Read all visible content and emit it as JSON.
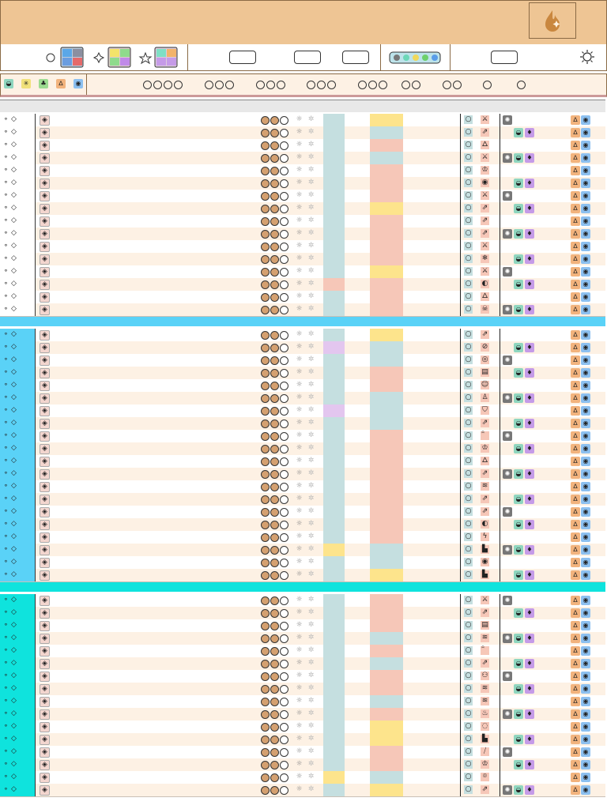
{
  "colors": {
    "header": "#eec594",
    "row_odd": "#ffffff",
    "row_even": "#fdf1e4",
    "section_blue": "#5ad2f7",
    "section_cyan": "#0fe3dd",
    "teal_col": "#c5dfe0",
    "salmon_col": "#f6c7b8",
    "yellow_col": "#fde48c",
    "lavender_col": "#e3c6ef"
  },
  "icons": {
    "logo": "pyro-element-icon",
    "filter_brain": "brain-icon",
    "filter_star_outline": "star-outline-icon",
    "filter_sparkle": "sparkle-icon",
    "settings": "sun-gear-icon"
  },
  "sections": [
    {
      "color": "#5ad2f7",
      "top": 400
    },
    {
      "color": "#0fe3dd",
      "top": 736
    }
  ],
  "rows": [
    {
      "top": 144,
      "bg": "#ffffff",
      "bar": "#ffffff",
      "t": "#c5dfe0",
      "y": "#fde48c",
      "right": "sword"
    },
    {
      "top": 160,
      "bg": "#fdf1e4",
      "bar": "#ffffff",
      "t": "#c5dfe0",
      "y": "#c5dfe0",
      "right": "arrow"
    },
    {
      "top": 176,
      "bg": "#ffffff",
      "bar": "#ffffff",
      "t": "#c5dfe0",
      "y": "#f6c7b8",
      "right": "flame"
    },
    {
      "top": 192,
      "bg": "#fdf1e4",
      "bar": "#ffffff",
      "t": "#c5dfe0",
      "y": "#c5dfe0",
      "right": "sword"
    },
    {
      "top": 208,
      "bg": "#ffffff",
      "bar": "#ffffff",
      "t": "#c5dfe0",
      "y": "#f6c7b8",
      "right": "crown"
    },
    {
      "top": 224,
      "bg": "#fdf1e4",
      "bar": "#ffffff",
      "t": "#c5dfe0",
      "y": "#f6c7b8",
      "right": "eye"
    },
    {
      "top": 240,
      "bg": "#ffffff",
      "bar": "#ffffff",
      "t": "#c5dfe0",
      "y": "#f6c7b8",
      "right": "sword"
    },
    {
      "top": 256,
      "bg": "#fdf1e4",
      "bar": "#ffffff",
      "t": "#c5dfe0",
      "y": "#fde48c",
      "right": "arrow"
    },
    {
      "top": 272,
      "bg": "#ffffff",
      "bar": "#ffffff",
      "t": "#c5dfe0",
      "y": "#f6c7b8",
      "right": "arrow"
    },
    {
      "top": 288,
      "bg": "#fdf1e4",
      "bar": "#ffffff",
      "t": "#c5dfe0",
      "y": "#f6c7b8",
      "right": "arrow"
    },
    {
      "top": 304,
      "bg": "#ffffff",
      "bar": "#ffffff",
      "t": "#c5dfe0",
      "y": "#f6c7b8",
      "right": "sword"
    },
    {
      "top": 320,
      "bg": "#fdf1e4",
      "bar": "#ffffff",
      "t": "#c5dfe0",
      "y": "#f6c7b8",
      "right": "snow"
    },
    {
      "top": 336,
      "bg": "#ffffff",
      "bar": "#ffffff",
      "t": "#c5dfe0",
      "y": "#fde48c",
      "right": "sword"
    },
    {
      "top": 352,
      "bg": "#fdf1e4",
      "bar": "#ffffff",
      "t": "#f6c7b8",
      "y": "#f6c7b8",
      "right": "drop"
    },
    {
      "top": 368,
      "bg": "#ffffff",
      "bar": "#ffffff",
      "t": "#c5dfe0",
      "y": "#f6c7b8",
      "right": "flame"
    },
    {
      "top": 384,
      "bg": "#fdf1e4",
      "bar": "#ffffff",
      "t": "#c5dfe0",
      "y": "#f6c7b8",
      "right": "skull"
    },
    {
      "top": 416,
      "bg": "#ffffff",
      "bar": "#5ad2f7",
      "t": "#c5dfe0",
      "y": "#fde48c",
      "right": "arrow"
    },
    {
      "top": 432,
      "bg": "#fdf1e4",
      "bar": "#5ad2f7",
      "t": "#e3c6ef",
      "y": "#c5dfe0",
      "right": "compass"
    },
    {
      "top": 448,
      "bg": "#ffffff",
      "bar": "#5ad2f7",
      "t": "#c5dfe0",
      "y": "#c5dfe0",
      "right": "target"
    },
    {
      "top": 464,
      "bg": "#fdf1e4",
      "bar": "#5ad2f7",
      "t": "#c5dfe0",
      "y": "#f6c7b8",
      "right": "book"
    },
    {
      "top": 480,
      "bg": "#ffffff",
      "bar": "#5ad2f7",
      "t": "#c5dfe0",
      "y": "#f6c7b8",
      "right": "smile"
    },
    {
      "top": 496,
      "bg": "#fdf1e4",
      "bar": "#5ad2f7",
      "t": "#c5dfe0",
      "y": "#c5dfe0",
      "right": "person"
    },
    {
      "top": 512,
      "bg": "#ffffff",
      "bar": "#5ad2f7",
      "t": "#e3c6ef",
      "y": "#c5dfe0",
      "right": "shield"
    },
    {
      "top": 528,
      "bg": "#fdf1e4",
      "bar": "#5ad2f7",
      "t": "#c5dfe0",
      "y": "#c5dfe0",
      "right": "arrow"
    },
    {
      "top": 544,
      "bg": "#ffffff",
      "bar": "#5ad2f7",
      "t": "#c5dfe0",
      "y": "#f6c7b8",
      "right": "swirl"
    },
    {
      "top": 560,
      "bg": "#fdf1e4",
      "bar": "#5ad2f7",
      "t": "#c5dfe0",
      "y": "#f6c7b8",
      "right": "crown"
    },
    {
      "top": 576,
      "bg": "#ffffff",
      "bar": "#5ad2f7",
      "t": "#c5dfe0",
      "y": "#f6c7b8",
      "right": "flame"
    },
    {
      "top": 592,
      "bg": "#fdf1e4",
      "bar": "#5ad2f7",
      "t": "#c5dfe0",
      "y": "#f6c7b8",
      "right": "arrow"
    },
    {
      "top": 608,
      "bg": "#ffffff",
      "bar": "#5ad2f7",
      "t": "#c5dfe0",
      "y": "#f6c7b8",
      "right": "wave"
    },
    {
      "top": 624,
      "bg": "#fdf1e4",
      "bar": "#5ad2f7",
      "t": "#c5dfe0",
      "y": "#f6c7b8",
      "right": "arrow"
    },
    {
      "top": 640,
      "bg": "#ffffff",
      "bar": "#5ad2f7",
      "t": "#c5dfe0",
      "y": "#f6c7b8",
      "right": "arrow"
    },
    {
      "top": 656,
      "bg": "#fdf1e4",
      "bar": "#5ad2f7",
      "t": "#c5dfe0",
      "y": "#f6c7b8",
      "right": "drop"
    },
    {
      "top": 672,
      "bg": "#ffffff",
      "bar": "#5ad2f7",
      "t": "#c5dfe0",
      "y": "#f6c7b8",
      "right": "bolt"
    },
    {
      "top": 688,
      "bg": "#fdf1e4",
      "bar": "#5ad2f7",
      "t": "#fde48c",
      "y": "#c5dfe0",
      "right": "chart"
    },
    {
      "top": 704,
      "bg": "#ffffff",
      "bar": "#5ad2f7",
      "t": "#c5dfe0",
      "y": "#c5dfe0",
      "right": "eye"
    },
    {
      "top": 720,
      "bg": "#fdf1e4",
      "bar": "#5ad2f7",
      "t": "#c5dfe0",
      "y": "#fde48c",
      "right": "chart"
    },
    {
      "top": 752,
      "bg": "#ffffff",
      "bar": "#0fe3dd",
      "t": "#c5dfe0",
      "y": "#f6c7b8",
      "right": "sword"
    },
    {
      "top": 768,
      "bg": "#fdf1e4",
      "bar": "#0fe3dd",
      "t": "#c5dfe0",
      "y": "#f6c7b8",
      "right": "arrow"
    },
    {
      "top": 784,
      "bg": "#ffffff",
      "bar": "#0fe3dd",
      "t": "#c5dfe0",
      "y": "#f6c7b8",
      "right": "book"
    },
    {
      "top": 800,
      "bg": "#fdf1e4",
      "bar": "#0fe3dd",
      "t": "#c5dfe0",
      "y": "#c5dfe0",
      "right": "wave"
    },
    {
      "top": 816,
      "bg": "#ffffff",
      "bar": "#0fe3dd",
      "t": "#c5dfe0",
      "y": "#f6c7b8",
      "right": "swirl"
    },
    {
      "top": 832,
      "bg": "#fdf1e4",
      "bar": "#0fe3dd",
      "t": "#c5dfe0",
      "y": "#c5dfe0",
      "right": "arrow"
    },
    {
      "top": 848,
      "bg": "#ffffff",
      "bar": "#0fe3dd",
      "t": "#c5dfe0",
      "y": "#f6c7b8",
      "right": "brain"
    },
    {
      "top": 864,
      "bg": "#fdf1e4",
      "bar": "#0fe3dd",
      "t": "#c5dfe0",
      "y": "#f6c7b8",
      "right": "wave"
    },
    {
      "top": 880,
      "bg": "#ffffff",
      "bar": "#0fe3dd",
      "t": "#c5dfe0",
      "y": "#c5dfe0",
      "right": "wave"
    },
    {
      "top": 896,
      "bg": "#fdf1e4",
      "bar": "#0fe3dd",
      "t": "#c5dfe0",
      "y": "#f6c7b8",
      "right": "fire"
    },
    {
      "top": 912,
      "bg": "#ffffff",
      "bar": "#0fe3dd",
      "t": "#c5dfe0",
      "y": "#fde48c",
      "right": "dash"
    },
    {
      "top": 928,
      "bg": "#fdf1e4",
      "bar": "#0fe3dd",
      "t": "#c5dfe0",
      "y": "#fde48c",
      "right": "chart"
    },
    {
      "top": 944,
      "bg": "#ffffff",
      "bar": "#0fe3dd",
      "t": "#c5dfe0",
      "y": "#f6c7b8",
      "right": "slash"
    },
    {
      "top": 960,
      "bg": "#fdf1e4",
      "bar": "#0fe3dd",
      "t": "#c5dfe0",
      "y": "#f6c7b8",
      "right": "crown"
    },
    {
      "top": 976,
      "bg": "#ffffff",
      "bar": "#0fe3dd",
      "t": "#fde48c",
      "y": "#c5dfe0",
      "right": "pin"
    },
    {
      "top": 992,
      "bg": "#fdf1e4",
      "bar": "#0fe3dd",
      "t": "#c5dfe0",
      "y": "#fde48c",
      "right": "arrow"
    }
  ]
}
